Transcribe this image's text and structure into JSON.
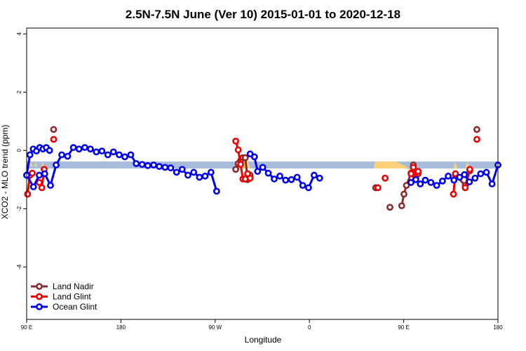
{
  "chart_data": {
    "type": "line",
    "title": "2.5N-7.5N June (Ver 10)   2015-01-01 to 2020-12-18",
    "xlabel": "Longitude",
    "ylabel": "XCO2 - MLO trend (ppm)",
    "xlim": [
      90,
      450
    ],
    "ylim": [
      -5.8,
      4.2
    ],
    "x_ticks": [
      90,
      162,
      234,
      306,
      378,
      450
    ],
    "x_tick_labels": [
      "90 E",
      "180",
      "90 W",
      "0",
      "90 E",
      "180"
    ],
    "y_ticks": [
      -4,
      -2,
      0,
      2,
      4
    ],
    "y_tick_labels": [
      "-4",
      "-2",
      "0",
      "2",
      "4"
    ],
    "legend_position": "bottom-left",
    "band": {
      "y0": -0.62,
      "y1": -0.38,
      "color": "#a7bcdc"
    },
    "colors": {
      "land_nadir": "#8b2b2b",
      "land_glint": "#ee0000",
      "ocean_glint": "#0000ee",
      "land_fill": "#fbd27a"
    },
    "series": [
      {
        "name": "Land Nadir",
        "color": "#8b2b2b",
        "segments": [
          [
            [
              90.7,
              -1.5
            ],
            [
              92.5,
              -0.85
            ]
          ],
          [
            [
              110.6,
              0.72
            ]
          ],
          [
            [
              249.7,
              -0.65
            ],
            [
              251.6,
              -0.45
            ],
            [
              253.4,
              -0.35
            ],
            [
              255.2,
              -0.25
            ],
            [
              257,
              -0.25
            ],
            [
              258.8,
              -1.0
            ],
            [
              260.7,
              -0.85
            ]
          ],
          [
            [
              356.6,
              -1.28
            ]
          ],
          [
            [
              367.5,
              -1.95
            ]
          ],
          [
            [
              376.5,
              -1.9
            ],
            [
              378.2,
              -1.5
            ],
            [
              380.1,
              -1.2
            ],
            [
              383.6,
              -0.78
            ],
            [
              385.4,
              -0.5
            ],
            [
              387.2,
              -0.95
            ],
            [
              389,
              -0.8
            ]
          ],
          [
            [
              417.5,
              -0.85
            ],
            [
              425,
              -1.2
            ],
            [
              428.5,
              -0.7
            ]
          ],
          [
            [
              433.9,
              0.72
            ]
          ]
        ]
      },
      {
        "name": "Land Glint",
        "color": "#ee0000",
        "segments": [
          [
            [
              90.7,
              -1.5
            ],
            [
              92.5,
              -0.85
            ],
            [
              94.3,
              -0.78
            ]
          ],
          [
            [
              99.7,
              -1.1
            ],
            [
              101.6,
              -1.28
            ],
            [
              103.4,
              -0.65
            ]
          ],
          [
            [
              110.6,
              0.38
            ]
          ],
          [
            [
              249.7,
              0.32
            ],
            [
              251.6,
              0.02
            ],
            [
              253.4,
              -0.48
            ],
            [
              255.2,
              -0.98
            ],
            [
              257,
              -0.98
            ],
            [
              258.8,
              -0.8
            ],
            [
              260.7,
              -0.95
            ]
          ],
          [
            [
              358.3,
              -1.28
            ]
          ],
          [
            [
              363.8,
              -0.95
            ]
          ],
          [
            [
              383.6,
              -0.8
            ],
            [
              385.4,
              -0.58
            ],
            [
              387.2,
              -0.95
            ],
            [
              389,
              -0.72
            ]
          ],
          [
            [
              416,
              -1.5
            ],
            [
              417.5,
              -0.8
            ]
          ],
          [
            [
              425,
              -1.28
            ],
            [
              428.5,
              -0.65
            ]
          ],
          [
            [
              433.9,
              0.38
            ]
          ]
        ]
      },
      {
        "name": "Ocean Glint",
        "color": "#0000ee",
        "segments": [
          [
            [
              90,
              -0.85
            ],
            [
              95.2,
              -1.25
            ],
            [
              99.6,
              -0.85
            ],
            [
              103.8,
              -0.8
            ],
            [
              108.2,
              -1.2
            ],
            [
              112.5,
              -0.5
            ],
            [
              116.8,
              -0.15
            ],
            [
              121.3,
              -0.2
            ],
            [
              125.7,
              0.1
            ],
            [
              130,
              0.05
            ],
            [
              134.4,
              0.1
            ],
            [
              138.7,
              0.05
            ],
            [
              143.2,
              -0.05
            ],
            [
              147.5,
              -0.02
            ],
            [
              152,
              -0.15
            ],
            [
              156.3,
              -0.05
            ],
            [
              160.7,
              -0.15
            ],
            [
              165,
              -0.22
            ],
            [
              169.5,
              -0.15
            ],
            [
              173.7,
              -0.45
            ],
            [
              178.2,
              -0.48
            ],
            [
              182.5,
              -0.52
            ],
            [
              187,
              -0.5
            ],
            [
              191.3,
              -0.55
            ],
            [
              195.7,
              -0.58
            ],
            [
              200,
              -0.6
            ],
            [
              204.5,
              -0.75
            ],
            [
              208.8,
              -0.65
            ],
            [
              213.2,
              -0.85
            ],
            [
              217.6,
              -0.75
            ],
            [
              222,
              -0.92
            ],
            [
              226.3,
              -0.88
            ],
            [
              230.8,
              -0.75
            ],
            [
              235.1,
              -1.4
            ]
          ],
          [
            [
              260.7,
              -0.12
            ],
            [
              264,
              -0.22
            ],
            [
              266.4,
              -0.72
            ],
            [
              270.3,
              -0.58
            ],
            [
              274.6,
              -0.78
            ],
            [
              279.1,
              -0.98
            ],
            [
              283.4,
              -0.88
            ],
            [
              287.8,
              -1.02
            ],
            [
              292.2,
              -1.0
            ],
            [
              296.6,
              -0.92
            ],
            [
              300.9,
              -1.2
            ],
            [
              305.3,
              -1.28
            ],
            [
              309.6,
              -0.85
            ],
            [
              313.8,
              -0.95
            ]
          ],
          [
            [
              383.6,
              -1.1
            ],
            [
              387.2,
              -1.0
            ],
            [
              390.7,
              -1.15
            ],
            [
              394.5,
              -1.02
            ],
            [
              398.8,
              -1.1
            ],
            [
              403.2,
              -1.2
            ],
            [
              407.6,
              -1.05
            ],
            [
              412,
              -0.88
            ],
            [
              416.4,
              -1.02
            ],
            [
              420.7,
              -0.92
            ],
            [
              424.4,
              -0.83
            ],
            [
              428.2,
              -1.08
            ],
            [
              432.5,
              -0.95
            ],
            [
              436.8,
              -0.8
            ],
            [
              441.2,
              -0.75
            ],
            [
              445.5,
              -1.15
            ],
            [
              450,
              -0.5
            ]
          ],
          [
            [
              90,
              -0.85
            ],
            [
              92.5,
              -0.15
            ],
            [
              95,
              0.05
            ],
            [
              97.5,
              -0.02
            ],
            [
              100,
              0.1
            ],
            [
              102.5,
              0.05
            ],
            [
              105,
              0.1
            ],
            [
              107.5,
              0.0
            ]
          ]
        ]
      }
    ]
  }
}
